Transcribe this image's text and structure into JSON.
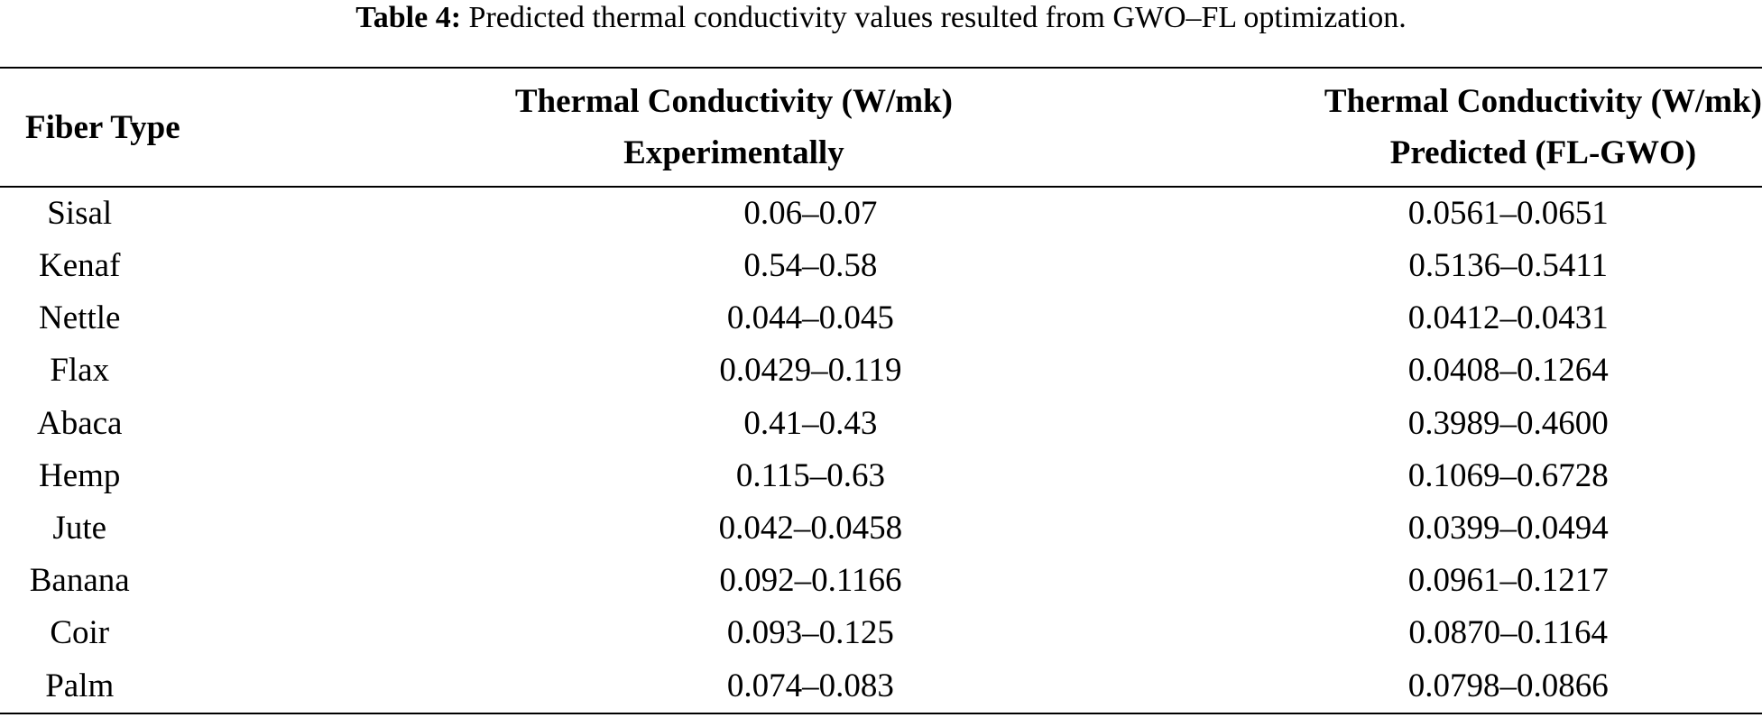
{
  "caption": {
    "label": "Table 4:",
    "text": "Predicted thermal conductivity values resulted from GWO–FL optimization."
  },
  "headers": {
    "fiber_type": "Fiber Type",
    "experimental_line1": "Thermal Conductivity (W/mk)",
    "experimental_line2": "Experimentally",
    "predicted_line1": "Thermal Conductivity (W/mk)",
    "predicted_line2": "Predicted (FL-GWO)"
  },
  "rows": [
    {
      "fiber": "Sisal",
      "experimental": "0.06–0.07",
      "predicted": "0.0561–0.0651"
    },
    {
      "fiber": "Kenaf",
      "experimental": "0.54–0.58",
      "predicted": "0.5136–0.5411"
    },
    {
      "fiber": "Nettle",
      "experimental": "0.044–0.045",
      "predicted": "0.0412–0.0431"
    },
    {
      "fiber": "Flax",
      "experimental": "0.0429–0.119",
      "predicted": "0.0408–0.1264"
    },
    {
      "fiber": "Abaca",
      "experimental": "0.41–0.43",
      "predicted": "0.3989–0.4600"
    },
    {
      "fiber": "Hemp",
      "experimental": "0.115–0.63",
      "predicted": "0.1069–0.6728"
    },
    {
      "fiber": "Jute",
      "experimental": "0.042–0.0458",
      "predicted": "0.0399–0.0494"
    },
    {
      "fiber": "Banana",
      "experimental": "0.092–0.1166",
      "predicted": "0.0961–0.1217"
    },
    {
      "fiber": "Coir",
      "experimental": "0.093–0.125",
      "predicted": "0.0870–0.1164"
    },
    {
      "fiber": "Palm",
      "experimental": "0.074–0.083",
      "predicted": "0.0798–0.0866"
    }
  ]
}
